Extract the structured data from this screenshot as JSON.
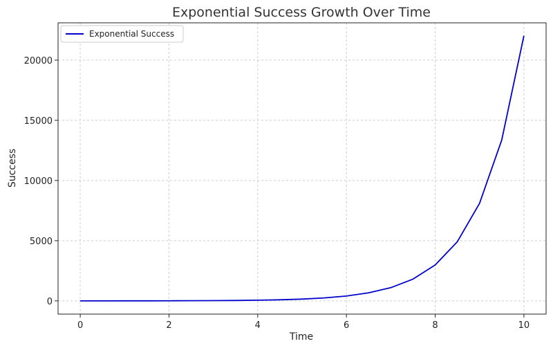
{
  "chart_data": {
    "type": "line",
    "title": "Exponential Success Growth Over Time",
    "xlabel": "Time",
    "ylabel": "Success",
    "xlim": [
      -0.5,
      10.5
    ],
    "ylim": [
      -1100,
      23100
    ],
    "x_ticks": [
      0,
      2,
      4,
      6,
      8,
      10
    ],
    "y_ticks": [
      0,
      5000,
      10000,
      15000,
      20000
    ],
    "grid": true,
    "legend": "top-left",
    "series": [
      {
        "name": "Exponential Success",
        "color": "#0000cc",
        "x": [
          0,
          0.5,
          1,
          1.5,
          2,
          2.5,
          3,
          3.5,
          4,
          4.5,
          5,
          5.5,
          6,
          6.5,
          7,
          7.5,
          8,
          8.5,
          9,
          9.5,
          10
        ],
        "y": [
          1,
          1.6,
          2.7,
          4.5,
          7.4,
          12,
          20,
          33,
          55,
          90,
          148,
          245,
          403,
          665,
          1097,
          1808,
          2981,
          4915,
          8103,
          13360,
          22026
        ]
      }
    ]
  },
  "colors": {
    "line": "#0000cc",
    "grid": "#cccccc",
    "axis": "#222222"
  }
}
